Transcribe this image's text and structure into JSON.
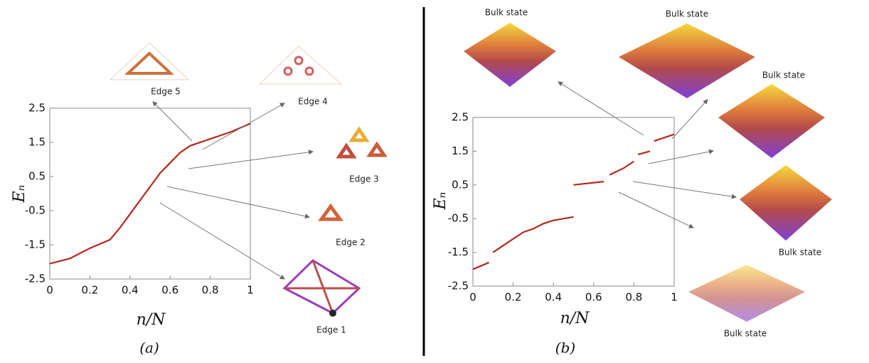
{
  "chart_data": [
    {
      "type": "line",
      "caption": "(a)",
      "xlabel": "n/N",
      "ylabel": "Eₙ",
      "x": [
        0,
        0.1,
        0.2,
        0.3,
        0.35,
        0.4,
        0.45,
        0.5,
        0.55,
        0.6,
        0.65,
        0.7,
        0.8,
        0.9,
        1
      ],
      "series": [
        {
          "color": "#b02a1e",
          "values": [
            -2.05,
            -1.9,
            -1.6,
            -1.35,
            -1.0,
            -0.6,
            -0.2,
            0.2,
            0.6,
            0.9,
            1.2,
            1.4,
            1.6,
            1.8,
            2.05
          ]
        }
      ],
      "xlim": [
        0,
        1
      ],
      "xticks": [
        0,
        0.2,
        0.4,
        0.6,
        0.8,
        1
      ],
      "ylim": [
        -2.5,
        2.5
      ],
      "yticks": [
        -2.5,
        -1.5,
        -0.5,
        0.5,
        1.5,
        2.5
      ],
      "annotations": [
        "Edge 5",
        "Edge 4",
        "Edge 3",
        "Edge 2",
        "Edge 1"
      ]
    },
    {
      "type": "line",
      "caption": "(b)",
      "xlabel": "n/N",
      "ylabel": "Eₙ",
      "x": [
        0,
        0.08,
        0.09,
        0.1,
        0.15,
        0.2,
        0.25,
        0.3,
        0.35,
        0.4,
        0.5,
        0.5,
        0.5,
        0.65,
        0.66,
        0.68,
        0.75,
        0.8,
        0.81,
        0.82,
        0.88,
        0.89,
        0.9,
        1
      ],
      "series": [
        {
          "color": "#b02a1e",
          "values": [
            -2.0,
            -1.8,
            null,
            -1.5,
            -1.3,
            -1.1,
            -0.9,
            -0.8,
            -0.65,
            -0.55,
            -0.45,
            null,
            0.5,
            0.6,
            null,
            0.8,
            1.0,
            1.2,
            null,
            1.4,
            1.5,
            null,
            1.8,
            2.0
          ]
        }
      ],
      "xlim": [
        0,
        1
      ],
      "xticks": [
        0,
        0.2,
        0.4,
        0.6,
        0.8,
        1
      ],
      "ylim": [
        -2.5,
        2.5
      ],
      "yticks": [
        -2.5,
        -1.5,
        -0.5,
        0.5,
        1.5,
        2.5
      ],
      "annotations": [
        "Bulk state",
        "Bulk state",
        "Bulk state",
        "Bulk state",
        "Bulk state"
      ]
    }
  ]
}
